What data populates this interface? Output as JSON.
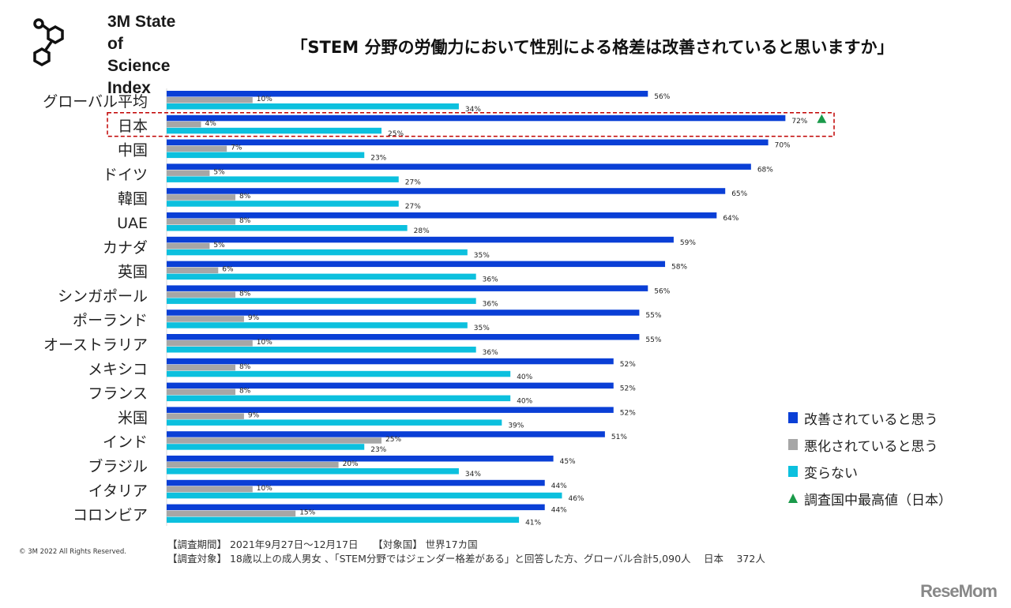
{
  "logo": {
    "line1": "3M State",
    "line2": "of Science",
    "line3": "Index"
  },
  "title": "「STEM 分野の労働力において性別による格差は改善されていると思いますか」",
  "chart_data": {
    "type": "bar",
    "orientation": "horizontal",
    "categories": [
      "グローバル平均",
      "日本",
      "中国",
      "ドイツ",
      "韓国",
      "UAE",
      "カナダ",
      "英国",
      "シンガポール",
      "ポーランド",
      "オーストラリア",
      "メキシコ",
      "フランス",
      "米国",
      "インド",
      "ブラジル",
      "イタリア",
      "コロンビア"
    ],
    "series": [
      {
        "name": "改善されていると思う",
        "color": "#0a3fd6",
        "values": [
          56,
          72,
          70,
          68,
          65,
          64,
          59,
          58,
          56,
          55,
          55,
          52,
          52,
          52,
          51,
          45,
          44,
          44
        ]
      },
      {
        "name": "悪化されていると思う",
        "color": "#a6a6a6",
        "values": [
          10,
          4,
          7,
          5,
          8,
          8,
          5,
          6,
          8,
          9,
          10,
          8,
          8,
          9,
          25,
          20,
          10,
          15
        ]
      },
      {
        "name": "変らない",
        "color": "#0cc0de",
        "values": [
          34,
          25,
          23,
          27,
          27,
          28,
          35,
          36,
          36,
          35,
          36,
          40,
          40,
          39,
          23,
          34,
          46,
          41
        ]
      }
    ],
    "value_suffix": "%",
    "highlight": {
      "category": "日本",
      "marker": "triangle",
      "color": "#1a9a4a",
      "legend": "調査国中最高値（日本）"
    },
    "highlight_box_color": "#c00000",
    "legend_placement": "bottom-right",
    "grid": false
  },
  "footer": {
    "copyright": "© 3M  2022    All Rights Reserved.",
    "period": "【調査期間】 2021年9月27日～12月17日　　【対象国】 世界17カ国",
    "target": "【調査対象】 18歳以上の成人男女 、「STEM分野ではジェンダー格差がある」と回答した方、グローバル合計5,090人　 日本　 372人",
    "brand": "ReseMom"
  }
}
